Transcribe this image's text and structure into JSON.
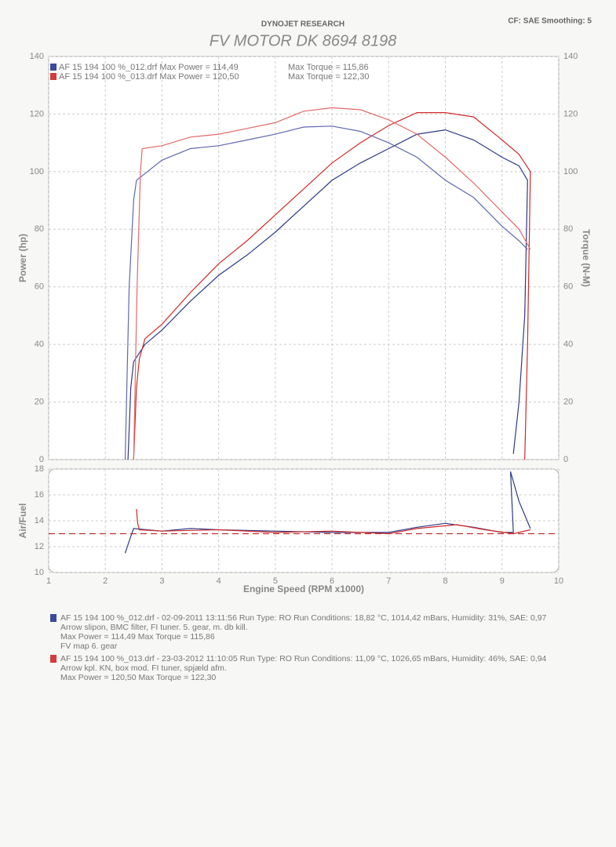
{
  "header": {
    "company": "DYNOJET RESEARCH",
    "settings": "CF: SAE  Smoothing: 5",
    "title": "FV MOTOR DK 8694 8198"
  },
  "chart_data": [
    {
      "type": "line",
      "y_label": "Power (hp)",
      "y2_label": "Torque (N-M)",
      "xlim": [
        1,
        10
      ],
      "ylim": [
        0,
        140
      ],
      "yticks": [
        0,
        20,
        40,
        60,
        80,
        100,
        120,
        140
      ],
      "y2lim": [
        0,
        140
      ],
      "y2ticks": [
        0,
        20,
        40,
        60,
        80,
        100,
        120,
        140
      ],
      "grid": true,
      "legend": [
        {
          "color": "#3b4a9c",
          "file": "AF 15 194 100 %_012.drf Max Power = 114,49",
          "torque": "Max Torque = 115,86"
        },
        {
          "color": "#d23c3c",
          "file": "AF 15 194 100 %_013.drf Max Power = 120,50",
          "torque": "Max Torque = 122,30"
        }
      ],
      "series": [
        {
          "color": "#2e3a86",
          "x": [
            2.4,
            2.45,
            2.5,
            2.7,
            3,
            3.5,
            4,
            4.5,
            5,
            5.5,
            6,
            6.5,
            7,
            7.5,
            8,
            8.5,
            9,
            9.3,
            9.45,
            9.4,
            9.3,
            9.2
          ],
          "values": [
            0,
            25,
            34,
            40,
            45,
            55,
            64,
            71,
            79,
            88,
            97,
            103,
            108,
            113,
            114.5,
            111,
            105,
            102,
            97,
            50,
            20,
            2
          ]
        },
        {
          "color": "#d02a2a",
          "x": [
            2.5,
            2.55,
            2.6,
            2.7,
            3,
            3.5,
            4,
            4.5,
            5,
            5.5,
            6,
            6.5,
            7,
            7.5,
            8,
            8.5,
            9,
            9.3,
            9.5,
            9.45,
            9.4
          ],
          "values": [
            0,
            25,
            35,
            42,
            47,
            58,
            68,
            76,
            85,
            94,
            103,
            110,
            116,
            120.5,
            120.5,
            119,
            111,
            106,
            100,
            40,
            0
          ]
        },
        {
          "color": "#6068b0",
          "axis": "y2",
          "x": [
            2.35,
            2.42,
            2.5,
            2.55,
            3,
            3.5,
            4,
            4.5,
            5,
            5.5,
            6,
            6.5,
            7,
            7.5,
            8,
            8.5,
            9,
            9.3,
            9.45
          ],
          "values": [
            0,
            60,
            90,
            97,
            104,
            108,
            109,
            111,
            113,
            115.5,
            115.8,
            114,
            110,
            105,
            97,
            91,
            81,
            76,
            73
          ]
        },
        {
          "color": "#e06a6a",
          "axis": "y2",
          "x": [
            2.5,
            2.56,
            2.62,
            2.65,
            3,
            3.5,
            4,
            4.5,
            5,
            5.5,
            6,
            6.5,
            7,
            7.5,
            8,
            8.5,
            9,
            9.3,
            9.5
          ],
          "values": [
            0,
            60,
            100,
            108,
            109,
            112,
            113,
            115,
            117,
            121,
            122.2,
            121.5,
            118,
            113,
            105,
            96,
            86,
            80,
            73
          ]
        }
      ]
    },
    {
      "type": "line",
      "y_label": "Air/Fuel",
      "x_label": "Engine Speed (RPM x1000)",
      "xlim": [
        1,
        10
      ],
      "xticks": [
        1,
        2,
        3,
        4,
        5,
        6,
        7,
        8,
        9,
        10
      ],
      "ylim": [
        10,
        18
      ],
      "yticks": [
        10,
        12,
        14,
        16,
        18
      ],
      "grid": true,
      "reference_line": {
        "value": 13,
        "color": "#c03030"
      },
      "series": [
        {
          "color": "#2e3a86",
          "x": [
            2.35,
            2.45,
            2.5,
            3,
            3.5,
            4,
            5,
            6,
            7,
            7.5,
            8,
            8.5,
            9,
            9.2,
            9.15,
            9.3,
            9.5
          ],
          "values": [
            11.5,
            12.8,
            13.4,
            13.2,
            13.4,
            13.3,
            13.2,
            13.1,
            13.1,
            13.5,
            13.8,
            13.5,
            13.1,
            13.1,
            17.8,
            15.5,
            13.4
          ]
        },
        {
          "color": "#d02a2a",
          "x": [
            2.55,
            2.57,
            2.6,
            3,
            4,
            5,
            6,
            7,
            7.5,
            8.2,
            8.7,
            9.2,
            9.5
          ],
          "values": [
            14.9,
            13.8,
            13.3,
            13.2,
            13.3,
            13.1,
            13.2,
            13.0,
            13.4,
            13.7,
            13.3,
            13.0,
            13.3
          ]
        }
      ]
    }
  ],
  "notes": [
    {
      "color": "#3b4a9c",
      "text_color": "#3a3a80",
      "lines": [
        "AF 15 194 100 %_012.drf - 02-09-2011 13:11:56  Run Type: RO  Run Conditions: 18,82 °C, 1014,42 mBars,  Humidity:  31%, SAE: 0,97",
        "Arrow slipon, BMC filter, FI tuner. 5. gear, m. db kill.",
        "Max Power = 114,49  Max Torque = 115,86",
        "FV map 6. gear"
      ]
    },
    {
      "color": "#d23c3c",
      "text_color": "#c83030",
      "lines": [
        "AF 15 194 100 %_013.drf - 23-03-2012 11:10:05  Run Type: RO  Run Conditions: 11,09 °C, 1026,65 mBars,  Humidity:  46%, SAE: 0,94",
        "Arrow kpl. KN, box mod. FI tuner, spjæld afm.",
        "Max Power = 120,50  Max Torque = 122,30"
      ]
    }
  ]
}
